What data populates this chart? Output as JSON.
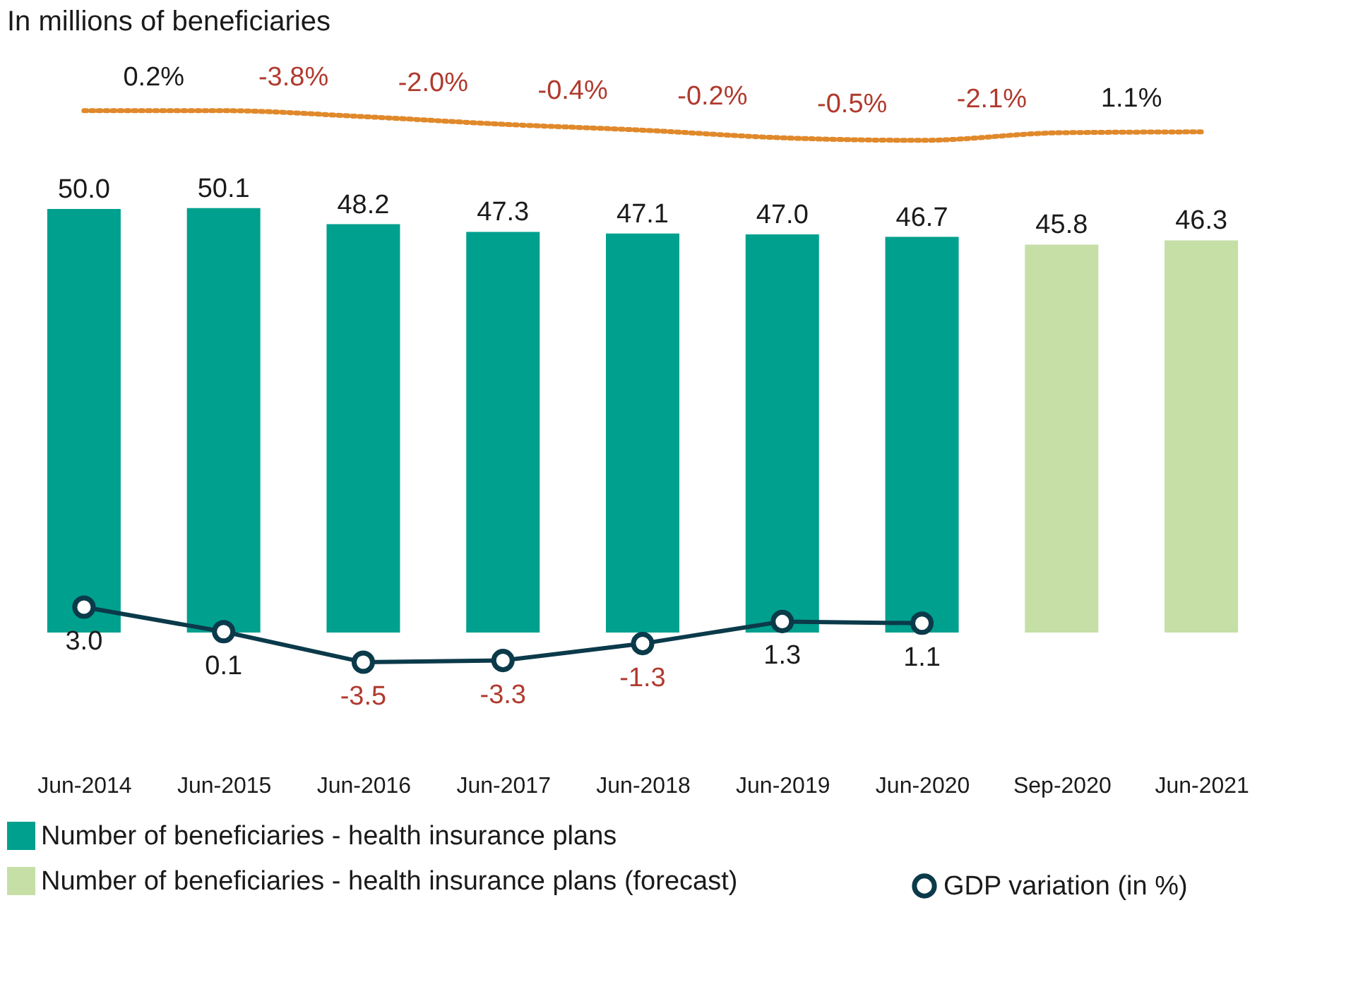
{
  "chart_data": {
    "type": "bar",
    "title": "In millions of beneficiaries",
    "categories": [
      "Jun-2014",
      "Jun-2015",
      "Jun-2016",
      "Jun-2017",
      "Jun-2018",
      "Jun-2019",
      "Jun-2020",
      "Sep-2020",
      "Jun-2021"
    ],
    "series": [
      {
        "name": "Number of beneficiaries - health insurance plans",
        "color": "#00a08e",
        "values": [
          50.0,
          50.1,
          48.2,
          47.3,
          47.1,
          47.0,
          46.7,
          null,
          null
        ],
        "value_labels": [
          "50.0",
          "50.1",
          "48.2",
          "47.3",
          "47.1",
          "47.0",
          "46.7",
          null,
          null
        ]
      },
      {
        "name": "Number of beneficiaries - health insurance plans (forecast)",
        "color": "#c5dfa7",
        "values": [
          null,
          null,
          null,
          null,
          null,
          null,
          null,
          45.8,
          46.3
        ],
        "value_labels": [
          null,
          null,
          null,
          null,
          null,
          null,
          null,
          "45.8",
          "46.3"
        ]
      },
      {
        "name": "GDP variation (in %)",
        "type": "line",
        "color": "#0b3a4a",
        "marker": "circle",
        "line_style": "solid",
        "values": [
          3.0,
          0.1,
          -3.5,
          -3.3,
          -1.3,
          1.3,
          1.1,
          null,
          null
        ],
        "value_labels": [
          "3.0",
          "0.1",
          "-3.5",
          "-3.3",
          "-1.3",
          "1.3",
          "1.1",
          null,
          null
        ]
      },
      {
        "type": "line",
        "color": "#e0892b",
        "line_style": "dotted",
        "marker": "none",
        "values": [
          61.6,
          61.6,
          60.9,
          60.0,
          59.3,
          58.4,
          58.1,
          59.0,
          59.1
        ]
      }
    ],
    "annotations": [
      "0.2%",
      "-3.8%",
      "-2.0%",
      "-0.4%",
      "-0.2%",
      "-0.5%",
      "-2.1%",
      "1.1%"
    ],
    "tick_labels": "x",
    "grid": false,
    "legend": "bottom"
  }
}
